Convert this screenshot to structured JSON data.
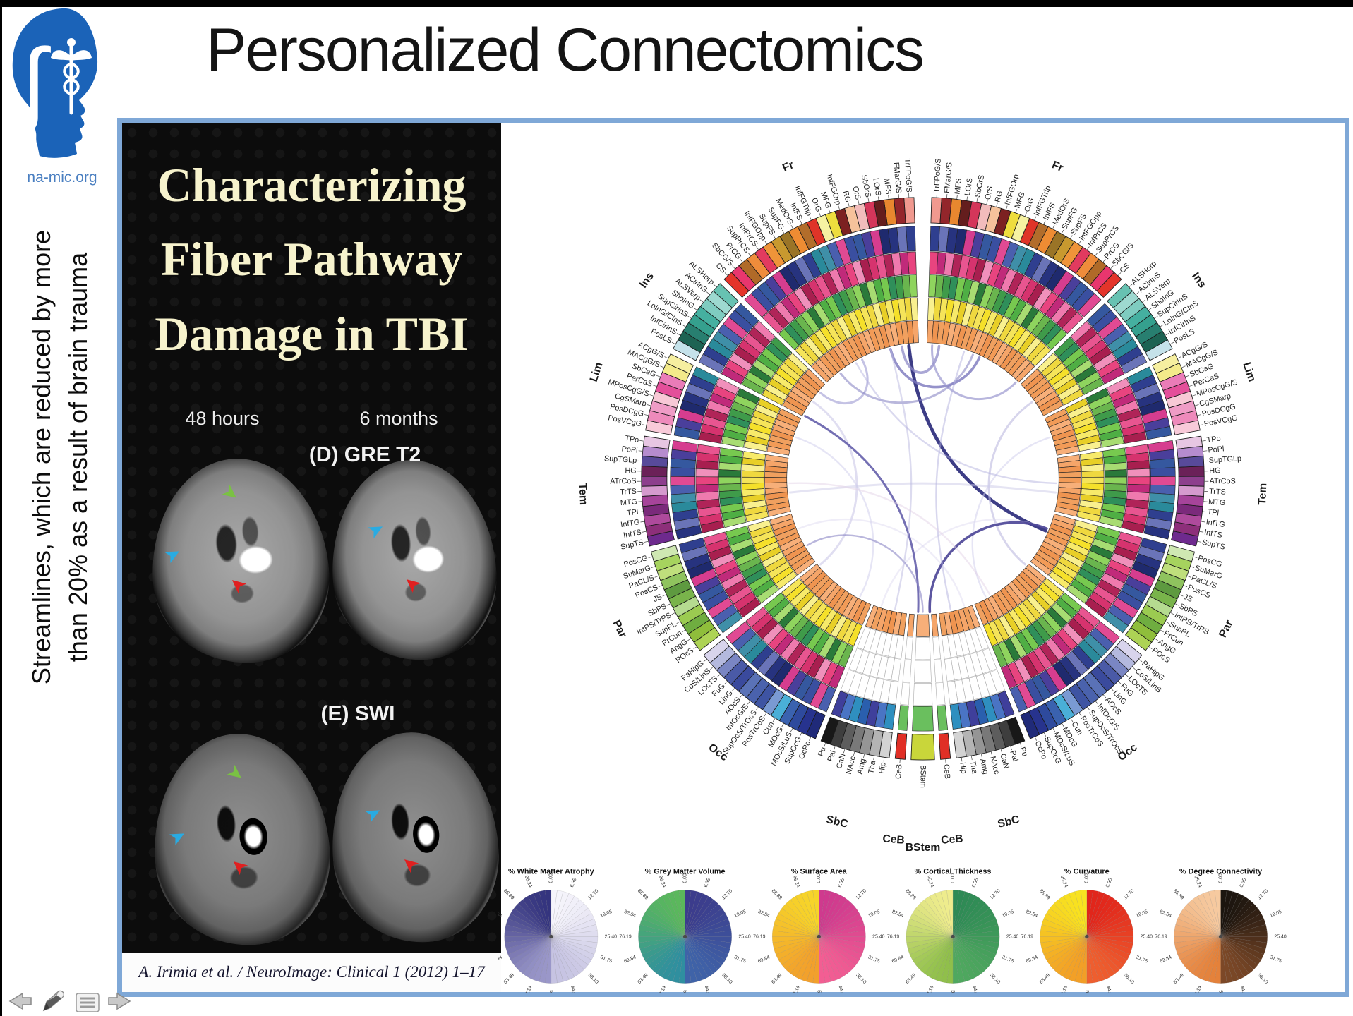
{
  "page": {
    "title": "Personalized Connectomics",
    "logo_caption": "na-mic.org",
    "side_note_line1": "Streamlines, which are reduced by more",
    "side_note_line2": "than 20% as a result of brain trauma"
  },
  "left_panel": {
    "heading_line1": "Characterizing",
    "heading_line2": "Fiber Pathway",
    "heading_line3": "Damage in TBI",
    "col_label1": "48 hours",
    "col_label2": "6 months",
    "seq_label1": "(D) GRE T2",
    "seq_label2": "(E) SWI",
    "citation": "A. Irimia et al. / NeuroImage: Clinical 1 (2012) 1–17",
    "arrow_colors": {
      "green": "#7ac143",
      "blue": "#29abe2",
      "red": "#e02020"
    }
  },
  "connectogram": {
    "groups": [
      {
        "tag": "Fr",
        "regions": [
          "TrFPoG/S",
          "FMarG/S",
          "MFS",
          "LOrS",
          "SbOrS",
          "OrS",
          "RG",
          "InfFGOrp",
          "MFG",
          "OrG",
          "InfFGTrip",
          "InfFS",
          "MedOrS",
          "SupFG",
          "SupFS",
          "InfFGOpp",
          "InfPrCS",
          "SupPrCS",
          "PrCG",
          "SbCG/S",
          "CS"
        ],
        "colors": [
          "#f0998f",
          "#93262b",
          "#e8872f",
          "#641d1d",
          "#d4365a",
          "#f2bcbc",
          "#f6c29b",
          "#7c2121",
          "#eedd3e",
          "#f6f2a2",
          "#df3428",
          "#b26d2b",
          "#ee8c33",
          "#9a7427",
          "#c8992f",
          "#ef9439",
          "#e23a5f",
          "#ef8c3b",
          "#b06a28",
          "#e8366e",
          "#e4342a"
        ]
      },
      {
        "tag": "Ins",
        "regions": [
          "ALSHorp",
          "ACirInS",
          "ALSVerp",
          "ShoInG",
          "SupCirInS",
          "LoInG/CInS",
          "InfCirInS",
          "PosLS"
        ],
        "colors": [
          "#67c2b2",
          "#9ed9d0",
          "#7fccc0",
          "#45b0a0",
          "#35a08e",
          "#287f70",
          "#1d6353",
          "#c5e2ea"
        ]
      },
      {
        "tag": "Lim",
        "regions": [
          "ACgG/S",
          "MACgG/S",
          "SbCaG",
          "PerCaS",
          "MPosCgG/S",
          "CgSMarp",
          "PosDCgG",
          "PosVCgG"
        ],
        "colors": [
          "#f6efa0",
          "#f3ea8a",
          "#ea7cb8",
          "#e44f9a",
          "#f7c9d6",
          "#ef9cc6",
          "#ee8abb",
          "#f8cad9"
        ]
      },
      {
        "tag": "Tem",
        "regions": [
          "TPo",
          "PoPl",
          "SupTGLp",
          "HG",
          "ATrCoS",
          "TrTS",
          "MTG",
          "TPl",
          "InfTG",
          "InfTS",
          "SupTS"
        ],
        "colors": [
          "#e7c6e2",
          "#b68cce",
          "#584a9a",
          "#6b2158",
          "#8d3f8d",
          "#d59ace",
          "#a6449a",
          "#7b2a7b",
          "#ae4a9c",
          "#8d2f7a",
          "#6e2a8e"
        ]
      },
      {
        "tag": "Par",
        "regions": [
          "PosCG",
          "SuMarG",
          "PaCL/S",
          "PosCS",
          "JS",
          "SbPS",
          "IntPS/TrPS",
          "SupPL",
          "PrCun",
          "AngG",
          "POcS"
        ],
        "colors": [
          "#cfe8b2",
          "#a6d35e",
          "#bfdf7c",
          "#8fc35e",
          "#5e9a40",
          "#79b44b",
          "#b5db90",
          "#9bcb51",
          "#6fad40",
          "#8fbe3b",
          "#add355"
        ]
      },
      {
        "tag": "Occ",
        "regions": [
          "PaHipG",
          "CoS/LinS",
          "LOcTS",
          "FuG",
          "LinG",
          "AOcS",
          "InfOcG/S",
          "SupOcS/TrOcS",
          "PosTrCoS",
          "Cun",
          "MOcG",
          "MOcS/LuS",
          "SupOcG",
          "OcPo"
        ],
        "colors": [
          "#d8d4ec",
          "#b4b9de",
          "#7a86c3",
          "#4a5aa7",
          "#3a4a9d",
          "#5a72b7",
          "#4a62ad",
          "#3e54a3",
          "#7a9ad3",
          "#4aafd7",
          "#3a62af",
          "#2e4a9d",
          "#27338e",
          "#202a79"
        ]
      },
      {
        "tag": "SbC",
        "regions": [
          "Pu",
          "Pal",
          "CaN",
          "NAcc",
          "Amg",
          "Tha",
          "Hip"
        ],
        "colors": [
          "#181818",
          "#3e3e3e",
          "#5d5d5d",
          "#797979",
          "#959595",
          "#b4b4b4",
          "#d3d3d3"
        ]
      },
      {
        "tag": "CeB",
        "regions": [
          "CeB"
        ],
        "colors": [
          "#e02f26"
        ]
      }
    ],
    "bstem": {
      "label": "BStem",
      "color": "#c9d63a"
    },
    "special": {
      "ceb_ring_color": "#6abf5e",
      "sbc_ring_blues": [
        "#2a5fae",
        "#3f3f9b",
        "#4a74c4",
        "#2f8fbf"
      ],
      "empty_cell": "#ffffff"
    },
    "ring_palettes": {
      "ring1": [
        "#2f3f8f",
        "#3a4fa0",
        "#27337f",
        "#4a5fae",
        "#d63d8f",
        "#2a8a9b",
        "#35589f",
        "#6a74b8",
        "#e04a93",
        "#1f2a6e",
        "#3f8fa8",
        "#4a3f9b"
      ],
      "ring2": [
        "#d6336e",
        "#e85590",
        "#b02458",
        "#ef7aae",
        "#c02a7a",
        "#e8447f",
        "#f090bb",
        "#a81f4f"
      ],
      "ring3": [
        "#3f9b4a",
        "#6ab54e",
        "#8fd45e",
        "#2a7a3a",
        "#a8dc72",
        "#4fae44",
        "#77c94f",
        "#2f8f5a"
      ],
      "ring4": [
        "#f5e02a",
        "#f7ea6a",
        "#e8cf27",
        "#f9f08f",
        "#efd83f",
        "#f5e45a"
      ],
      "ring5": [
        "#f5a569",
        "#f29b57",
        "#ef9450",
        "#f7af79",
        "#f0a05f"
      ]
    },
    "chords": [
      {
        "a1": -6,
        "a2": 113,
        "c": "#33337f",
        "w": 4,
        "o": 0.95
      },
      {
        "a1": -14,
        "a2": 25,
        "c": "#7a77bd",
        "w": 3,
        "o": 0.8
      },
      {
        "a1": -9,
        "a2": 7,
        "c": "#8d8ac7",
        "w": 3,
        "o": 0.75
      },
      {
        "a1": 4,
        "a2": 44,
        "c": "#9a97cf",
        "w": 2.5,
        "o": 0.7
      },
      {
        "a1": -27,
        "a2": -50,
        "c": "#a5a2d6",
        "w": 2.5,
        "o": 0.65
      },
      {
        "a1": 22,
        "a2": -38,
        "c": "#8a87c4",
        "w": 2.5,
        "o": 0.6
      },
      {
        "a1": 55,
        "a2": 130,
        "c": "#bcb9e0",
        "w": 2.5,
        "o": 0.6
      },
      {
        "a1": -55,
        "a2": -130,
        "c": "#c6c3e6",
        "w": 2.5,
        "o": 0.55
      },
      {
        "a1": -96,
        "a2": 96,
        "c": "#ccc9e8",
        "w": 2.5,
        "o": 0.5
      },
      {
        "a1": -72,
        "a2": -152,
        "c": "#d2cfec",
        "w": 2,
        "o": 0.55
      },
      {
        "a1": 72,
        "a2": 152,
        "c": "#d2cfec",
        "w": 2,
        "o": 0.55
      },
      {
        "a1": -112,
        "a2": 162,
        "c": "#dbd8f0",
        "w": 2,
        "o": 0.45
      },
      {
        "a1": 112,
        "a2": -162,
        "c": "#dbd8f0",
        "w": 2,
        "o": 0.45
      },
      {
        "a1": 177,
        "a2": 112,
        "c": "#4a4496",
        "w": 3,
        "o": 0.9
      },
      {
        "a1": -178,
        "a2": -62,
        "c": "#5c56a6",
        "w": 2.5,
        "o": 0.85
      },
      {
        "a1": 180,
        "a2": -120,
        "c": "#8a86c4",
        "w": 2,
        "o": 0.6
      },
      {
        "a1": 168,
        "a2": 18,
        "c": "#b2afdd",
        "w": 2,
        "o": 0.5
      },
      {
        "a1": -168,
        "a2": -14,
        "c": "#bab7e0",
        "w": 2,
        "o": 0.5
      },
      {
        "a1": 92,
        "a2": -30,
        "c": "#aeabdb",
        "w": 2,
        "o": 0.45
      },
      {
        "a1": -92,
        "a2": 150,
        "c": "#e4d4e8",
        "w": 2,
        "o": 0.5
      }
    ]
  },
  "wheels": {
    "tick_labels": [
      "0.00",
      "6.35",
      "12.70",
      "19.05",
      "25.40",
      "31.75",
      "38.10",
      "44.44",
      "50.79",
      "57.14",
      "63.49",
      "69.84",
      "76.19",
      "82.54",
      "88.89",
      "95.24"
    ],
    "items": [
      {
        "title": "% White Matter Atrophy",
        "left_top": "#34347e",
        "left_bottom": "#9a97c9",
        "right_top": "#f5f4fb",
        "right_bottom": "#c6c3e2"
      },
      {
        "title": "% Grey Matter Volume",
        "left_top": "#5bb85b",
        "left_bottom": "#2f8fa0",
        "right_top": "#3c3c8c",
        "right_bottom": "#3f63a8"
      },
      {
        "title": "% Surface Area",
        "left_top": "#f6d42a",
        "left_bottom": "#f2a02c",
        "right_top": "#cf3a8e",
        "right_bottom": "#f25e93"
      },
      {
        "title": "% Cortical Thickness",
        "left_top": "#efec8e",
        "left_bottom": "#8fbf4a",
        "right_top": "#2e8a55",
        "right_bottom": "#4fa85f"
      },
      {
        "title": "% Curvature",
        "left_top": "#f8e320",
        "left_bottom": "#f29e27",
        "right_top": "#e1251b",
        "right_bottom": "#ee5f2f"
      },
      {
        "title": "% Degree Connectivity",
        "left_top": "#f6caa0",
        "left_bottom": "#e4813a",
        "right_top": "#1b150f",
        "right_bottom": "#7c4827"
      }
    ]
  },
  "nav": {
    "items": [
      "previous-slide",
      "annotate-pen",
      "slide-menu",
      "next-slide"
    ]
  }
}
